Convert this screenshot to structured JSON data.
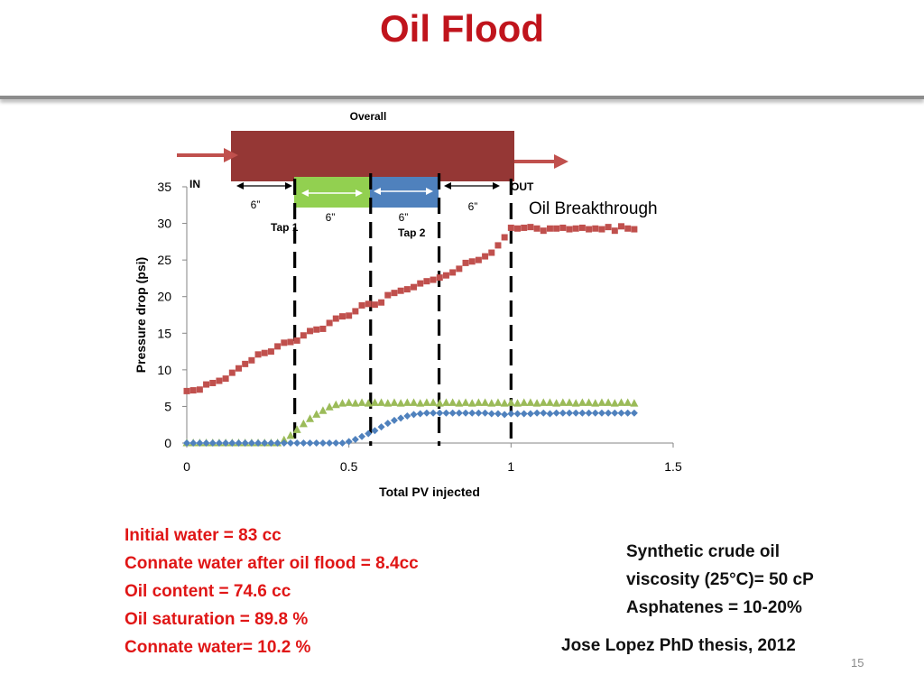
{
  "slide": {
    "title": "Oil Flood",
    "page_number": "15",
    "notes": [
      "Initial water = 83 cc",
      "Connate water after oil flood = 8.4cc",
      "Oil content = 74.6 cc",
      "Oil saturation = 89.8 %",
      "Connate water= 10.2 %"
    ],
    "properties": [
      "Synthetic crude oil",
      "viscosity (25°C)= 50 cP",
      "Asphatenes = 10-20%"
    ],
    "reference": "Jose Lopez PhD thesis, 2012",
    "title_color": "#c0141c",
    "notes_color": "#e01616"
  },
  "schematic": {
    "overall_label": "Overall",
    "in_label": "IN",
    "out_label": "OUT",
    "tap1_label": "Tap 1",
    "tap2_label": "Tap 2",
    "segment_labels": [
      "6”",
      "6”",
      "6”",
      "6”"
    ],
    "breakthrough_label": "Oil Breakthrough",
    "core_color": "#953735",
    "tap1_section_color": "#92d050",
    "tap2_section_color": "#4f81bd",
    "arrow_color": "#c0504d"
  },
  "chart_data": {
    "type": "scatter",
    "xlabel": "Total PV injected",
    "ylabel": "Pressure drop (psi)",
    "xlim": [
      0,
      1.5
    ],
    "ylim": [
      0,
      35
    ],
    "x_ticks": [
      "0",
      "0.5",
      "1",
      "1.5"
    ],
    "y_ticks": [
      "0",
      "5",
      "10",
      "15",
      "20",
      "25",
      "30",
      "35"
    ],
    "grid": false,
    "legend": "none",
    "tap_positions_pv": [
      0.333,
      0.567,
      0.778,
      1.0
    ],
    "series": [
      {
        "marker": "square",
        "color": "#c0504d",
        "points": [
          [
            0.0,
            7.1
          ],
          [
            0.02,
            7.2
          ],
          [
            0.04,
            7.3
          ],
          [
            0.06,
            8.0
          ],
          [
            0.08,
            8.2
          ],
          [
            0.1,
            8.5
          ],
          [
            0.12,
            8.8
          ],
          [
            0.14,
            9.6
          ],
          [
            0.16,
            10.2
          ],
          [
            0.18,
            10.8
          ],
          [
            0.2,
            11.3
          ],
          [
            0.22,
            12.1
          ],
          [
            0.24,
            12.3
          ],
          [
            0.26,
            12.5
          ],
          [
            0.28,
            13.2
          ],
          [
            0.3,
            13.7
          ],
          [
            0.32,
            13.8
          ],
          [
            0.34,
            14.0
          ],
          [
            0.36,
            14.7
          ],
          [
            0.38,
            15.3
          ],
          [
            0.4,
            15.5
          ],
          [
            0.42,
            15.6
          ],
          [
            0.44,
            16.4
          ],
          [
            0.46,
            17.0
          ],
          [
            0.48,
            17.3
          ],
          [
            0.5,
            17.4
          ],
          [
            0.52,
            18.0
          ],
          [
            0.54,
            18.8
          ],
          [
            0.56,
            19.0
          ],
          [
            0.58,
            18.9
          ],
          [
            0.6,
            19.2
          ],
          [
            0.62,
            20.2
          ],
          [
            0.64,
            20.5
          ],
          [
            0.66,
            20.8
          ],
          [
            0.68,
            21.0
          ],
          [
            0.7,
            21.3
          ],
          [
            0.72,
            21.8
          ],
          [
            0.74,
            22.1
          ],
          [
            0.76,
            22.3
          ],
          [
            0.78,
            22.6
          ],
          [
            0.8,
            22.9
          ],
          [
            0.82,
            23.3
          ],
          [
            0.84,
            23.8
          ],
          [
            0.86,
            24.6
          ],
          [
            0.88,
            24.8
          ],
          [
            0.9,
            25.0
          ],
          [
            0.92,
            25.5
          ],
          [
            0.94,
            26.0
          ],
          [
            0.96,
            27.0
          ],
          [
            0.98,
            28.1
          ],
          [
            1.0,
            29.4
          ],
          [
            1.02,
            29.3
          ],
          [
            1.04,
            29.4
          ],
          [
            1.06,
            29.5
          ],
          [
            1.08,
            29.3
          ],
          [
            1.1,
            29.0
          ],
          [
            1.12,
            29.3
          ],
          [
            1.14,
            29.3
          ],
          [
            1.16,
            29.4
          ],
          [
            1.18,
            29.2
          ],
          [
            1.2,
            29.3
          ],
          [
            1.22,
            29.4
          ],
          [
            1.24,
            29.2
          ],
          [
            1.26,
            29.3
          ],
          [
            1.28,
            29.2
          ],
          [
            1.3,
            29.5
          ],
          [
            1.32,
            29.0
          ],
          [
            1.34,
            29.6
          ],
          [
            1.36,
            29.3
          ],
          [
            1.38,
            29.2
          ]
        ]
      },
      {
        "marker": "triangle",
        "color": "#9bbb59",
        "points": [
          [
            0.0,
            0.0
          ],
          [
            0.02,
            0.0
          ],
          [
            0.04,
            0.0
          ],
          [
            0.06,
            0.0
          ],
          [
            0.08,
            0.0
          ],
          [
            0.1,
            0.0
          ],
          [
            0.12,
            0.0
          ],
          [
            0.14,
            0.0
          ],
          [
            0.16,
            0.0
          ],
          [
            0.18,
            0.0
          ],
          [
            0.2,
            0.0
          ],
          [
            0.22,
            0.0
          ],
          [
            0.24,
            0.0
          ],
          [
            0.26,
            0.0
          ],
          [
            0.28,
            0.0
          ],
          [
            0.3,
            0.4
          ],
          [
            0.32,
            1.0
          ],
          [
            0.34,
            1.8
          ],
          [
            0.36,
            2.6
          ],
          [
            0.38,
            3.3
          ],
          [
            0.4,
            3.9
          ],
          [
            0.42,
            4.4
          ],
          [
            0.44,
            4.9
          ],
          [
            0.46,
            5.2
          ],
          [
            0.48,
            5.4
          ],
          [
            0.5,
            5.5
          ],
          [
            0.52,
            5.4
          ],
          [
            0.54,
            5.5
          ],
          [
            0.56,
            5.4
          ],
          [
            0.58,
            5.5
          ],
          [
            0.6,
            5.5
          ],
          [
            0.62,
            5.4
          ],
          [
            0.64,
            5.5
          ],
          [
            0.66,
            5.4
          ],
          [
            0.68,
            5.5
          ],
          [
            0.7,
            5.5
          ],
          [
            0.72,
            5.4
          ],
          [
            0.74,
            5.5
          ],
          [
            0.76,
            5.5
          ],
          [
            0.78,
            5.4
          ],
          [
            0.8,
            5.5
          ],
          [
            0.82,
            5.5
          ],
          [
            0.84,
            5.4
          ],
          [
            0.86,
            5.5
          ],
          [
            0.88,
            5.4
          ],
          [
            0.9,
            5.5
          ],
          [
            0.92,
            5.5
          ],
          [
            0.94,
            5.4
          ],
          [
            0.96,
            5.5
          ],
          [
            0.98,
            5.4
          ],
          [
            1.0,
            5.5
          ],
          [
            1.02,
            5.4
          ],
          [
            1.04,
            5.5
          ],
          [
            1.06,
            5.5
          ],
          [
            1.08,
            5.4
          ],
          [
            1.1,
            5.5
          ],
          [
            1.12,
            5.5
          ],
          [
            1.14,
            5.4
          ],
          [
            1.16,
            5.5
          ],
          [
            1.18,
            5.5
          ],
          [
            1.2,
            5.4
          ],
          [
            1.22,
            5.5
          ],
          [
            1.24,
            5.5
          ],
          [
            1.26,
            5.4
          ],
          [
            1.28,
            5.5
          ],
          [
            1.3,
            5.5
          ],
          [
            1.32,
            5.4
          ],
          [
            1.34,
            5.5
          ],
          [
            1.36,
            5.5
          ],
          [
            1.38,
            5.4
          ]
        ]
      },
      {
        "marker": "diamond",
        "color": "#4f81bd",
        "points": [
          [
            0.0,
            0.0
          ],
          [
            0.02,
            0.0
          ],
          [
            0.04,
            0.0
          ],
          [
            0.06,
            0.0
          ],
          [
            0.08,
            0.0
          ],
          [
            0.1,
            0.0
          ],
          [
            0.12,
            0.0
          ],
          [
            0.14,
            0.0
          ],
          [
            0.16,
            0.0
          ],
          [
            0.18,
            0.0
          ],
          [
            0.2,
            0.0
          ],
          [
            0.22,
            0.0
          ],
          [
            0.24,
            0.0
          ],
          [
            0.26,
            0.0
          ],
          [
            0.28,
            0.0
          ],
          [
            0.3,
            0.0
          ],
          [
            0.32,
            0.0
          ],
          [
            0.34,
            0.0
          ],
          [
            0.36,
            0.0
          ],
          [
            0.38,
            0.0
          ],
          [
            0.4,
            0.0
          ],
          [
            0.42,
            0.0
          ],
          [
            0.44,
            0.0
          ],
          [
            0.46,
            0.0
          ],
          [
            0.48,
            0.0
          ],
          [
            0.5,
            0.2
          ],
          [
            0.52,
            0.5
          ],
          [
            0.54,
            0.9
          ],
          [
            0.56,
            1.3
          ],
          [
            0.58,
            1.7
          ],
          [
            0.6,
            2.2
          ],
          [
            0.62,
            2.7
          ],
          [
            0.64,
            3.1
          ],
          [
            0.66,
            3.4
          ],
          [
            0.68,
            3.7
          ],
          [
            0.7,
            3.9
          ],
          [
            0.72,
            4.0
          ],
          [
            0.74,
            4.1
          ],
          [
            0.76,
            4.1
          ],
          [
            0.78,
            4.1
          ],
          [
            0.8,
            4.1
          ],
          [
            0.82,
            4.1
          ],
          [
            0.84,
            4.1
          ],
          [
            0.86,
            4.1
          ],
          [
            0.88,
            4.1
          ],
          [
            0.9,
            4.1
          ],
          [
            0.92,
            4.1
          ],
          [
            0.94,
            4.0
          ],
          [
            0.96,
            4.0
          ],
          [
            0.98,
            3.9
          ],
          [
            1.0,
            4.0
          ],
          [
            1.02,
            4.0
          ],
          [
            1.04,
            4.0
          ],
          [
            1.06,
            4.0
          ],
          [
            1.08,
            4.1
          ],
          [
            1.1,
            4.1
          ],
          [
            1.12,
            4.0
          ],
          [
            1.14,
            4.1
          ],
          [
            1.16,
            4.1
          ],
          [
            1.18,
            4.1
          ],
          [
            1.2,
            4.1
          ],
          [
            1.22,
            4.1
          ],
          [
            1.24,
            4.1
          ],
          [
            1.26,
            4.1
          ],
          [
            1.28,
            4.1
          ],
          [
            1.3,
            4.1
          ],
          [
            1.32,
            4.1
          ],
          [
            1.34,
            4.1
          ],
          [
            1.36,
            4.1
          ],
          [
            1.38,
            4.1
          ]
        ]
      }
    ]
  }
}
